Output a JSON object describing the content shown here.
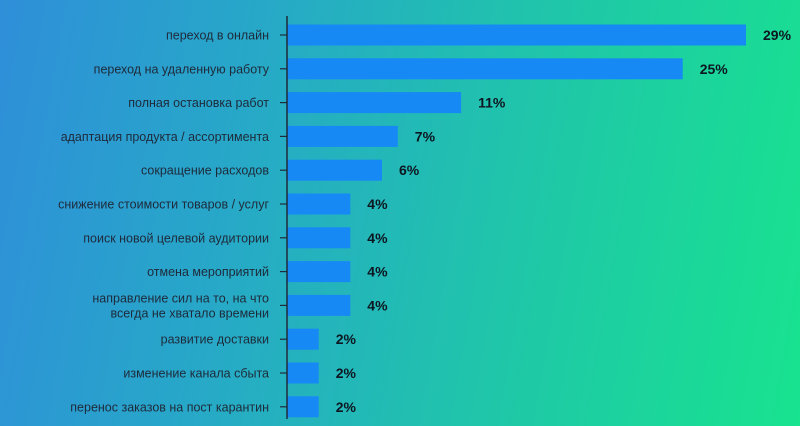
{
  "colors": {
    "bar": "#1689f5",
    "axis": "#1e2a3a",
    "label": "#1e2a3a",
    "value": "#0d1620"
  },
  "chart_data": {
    "type": "bar",
    "orientation": "horizontal",
    "title": "",
    "xlabel": "",
    "ylabel": "",
    "xlim": [
      0,
      30
    ],
    "grid": false,
    "legend": "none",
    "categories": [
      "переход в онлайн",
      "переход на удаленную работу",
      "полная остановка работ",
      "адаптация продукта / ассортимента",
      "сокращение расходов",
      "снижение стоимости товаров / услуг",
      "поиск новой целевой аудитории",
      "отмена мероприятий",
      "направление сил на то, на что всегда не хватало времени",
      "развитие доставки",
      "изменение канала сбыта",
      "перенос заказов на пост карантин"
    ],
    "category_lines": [
      [
        "переход в онлайн"
      ],
      [
        "переход на удаленную работу"
      ],
      [
        "полная остановка работ"
      ],
      [
        "адаптация продукта / ассортимента"
      ],
      [
        "сокращение расходов"
      ],
      [
        "снижение стоимости товаров / услуг"
      ],
      [
        "поиск новой целевой аудитории"
      ],
      [
        "отмена мероприятий"
      ],
      [
        "направление сил на то, на что",
        "всегда не хватало времени"
      ],
      [
        "развитие доставки"
      ],
      [
        "изменение канала сбыта"
      ],
      [
        "перенос заказов на пост карантин"
      ]
    ],
    "values": [
      29,
      25,
      11,
      7,
      6,
      4,
      4,
      4,
      4,
      2,
      2,
      2
    ],
    "value_labels": [
      "29%",
      "25%",
      "11%",
      "7%",
      "6%",
      "4%",
      "4%",
      "4%",
      "4%",
      "2%",
      "2%",
      "2%"
    ]
  }
}
